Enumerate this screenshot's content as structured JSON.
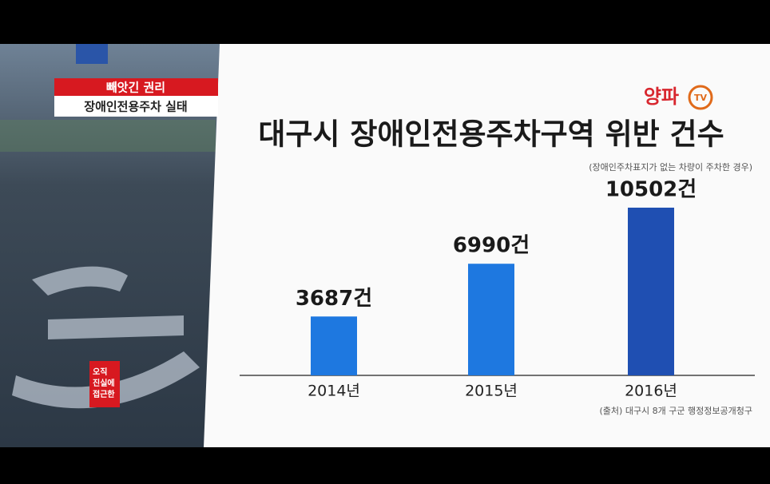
{
  "chart_data": {
    "type": "bar",
    "title": "대구시 장애인전용주차구역 위반 건수",
    "subtitle": "(장애인주차표지가 없는 차량이 주차한 경우)",
    "categories": [
      "2014년",
      "2015년",
      "2016년"
    ],
    "values": [
      3687,
      6990,
      10502
    ],
    "value_labels": [
      "3687건",
      "6990건",
      "10502건"
    ],
    "colors": [
      "#1e78e0",
      "#1e78e0",
      "#1f4fb2"
    ],
    "source": "(출처) 대구시 8개 구군 행정정보공개청구"
  },
  "overlay": {
    "tag_top": "빼앗긴 권리",
    "tag_bottom": "장애인전용주차 실태",
    "logo": "양파",
    "logo_tv": "TV",
    "badge": [
      "오직",
      "진실에",
      "접근한"
    ]
  }
}
